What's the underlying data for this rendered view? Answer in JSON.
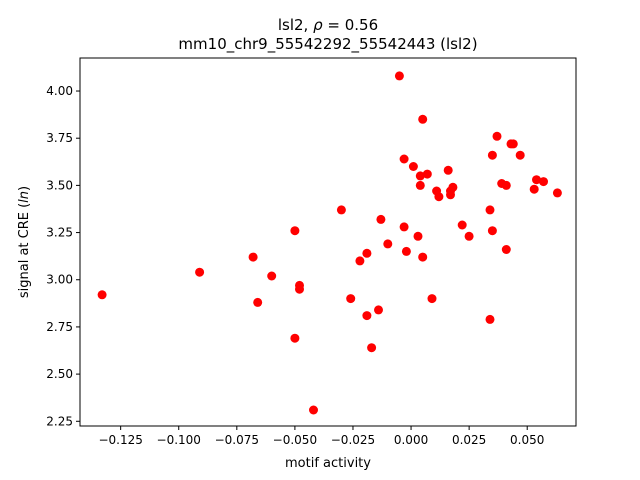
{
  "chart_data": {
    "type": "scatter",
    "title_line1": "lsl2, ρ = 0.56",
    "title_line2": "mm10_chr9_55542292_55542443 (lsl2)",
    "xlabel": "motif activity",
    "ylabel": "signal at CRE (ln)",
    "xlim": [
      -0.1425,
      0.071
    ],
    "ylim": [
      2.225,
      4.175
    ],
    "x_ticks": [
      -0.125,
      -0.1,
      -0.075,
      -0.05,
      -0.025,
      0.0,
      0.025,
      0.05
    ],
    "x_tick_labels": [
      "−0.125",
      "−0.100",
      "−0.075",
      "−0.050",
      "−0.025",
      "0.000",
      "0.025",
      "0.050"
    ],
    "y_ticks": [
      2.25,
      2.5,
      2.75,
      3.0,
      3.25,
      3.5,
      3.75,
      4.0
    ],
    "y_tick_labels": [
      "2.25",
      "2.50",
      "2.75",
      "3.00",
      "3.25",
      "3.50",
      "3.75",
      "4.00"
    ],
    "marker_color": "#ff0000",
    "grid": false,
    "points": [
      [
        -0.133,
        2.92
      ],
      [
        -0.091,
        3.04
      ],
      [
        -0.068,
        3.12
      ],
      [
        -0.066,
        2.88
      ],
      [
        -0.06,
        3.02
      ],
      [
        -0.05,
        3.26
      ],
      [
        -0.05,
        2.69
      ],
      [
        -0.048,
        2.97
      ],
      [
        -0.048,
        2.95
      ],
      [
        -0.042,
        2.31
      ],
      [
        -0.03,
        3.37
      ],
      [
        -0.026,
        2.9
      ],
      [
        -0.022,
        3.1
      ],
      [
        -0.019,
        2.81
      ],
      [
        -0.019,
        3.14
      ],
      [
        -0.017,
        2.64
      ],
      [
        -0.014,
        2.84
      ],
      [
        -0.013,
        3.32
      ],
      [
        -0.01,
        3.19
      ],
      [
        -0.005,
        4.08
      ],
      [
        -0.003,
        3.64
      ],
      [
        -0.003,
        3.28
      ],
      [
        -0.002,
        3.15
      ],
      [
        0.001,
        3.6
      ],
      [
        0.003,
        3.23
      ],
      [
        0.004,
        3.55
      ],
      [
        0.004,
        3.5
      ],
      [
        0.005,
        3.12
      ],
      [
        0.005,
        3.85
      ],
      [
        0.007,
        3.56
      ],
      [
        0.009,
        2.9
      ],
      [
        0.011,
        3.47
      ],
      [
        0.012,
        3.44
      ],
      [
        0.016,
        3.58
      ],
      [
        0.017,
        3.47
      ],
      [
        0.017,
        3.45
      ],
      [
        0.018,
        3.49
      ],
      [
        0.022,
        3.29
      ],
      [
        0.025,
        3.23
      ],
      [
        0.034,
        3.37
      ],
      [
        0.034,
        2.79
      ],
      [
        0.035,
        3.66
      ],
      [
        0.035,
        3.26
      ],
      [
        0.037,
        3.76
      ],
      [
        0.039,
        3.51
      ],
      [
        0.041,
        3.5
      ],
      [
        0.041,
        3.16
      ],
      [
        0.043,
        3.72
      ],
      [
        0.044,
        3.72
      ],
      [
        0.047,
        3.66
      ],
      [
        0.053,
        3.48
      ],
      [
        0.054,
        3.53
      ],
      [
        0.057,
        3.52
      ],
      [
        0.063,
        3.46
      ]
    ]
  }
}
